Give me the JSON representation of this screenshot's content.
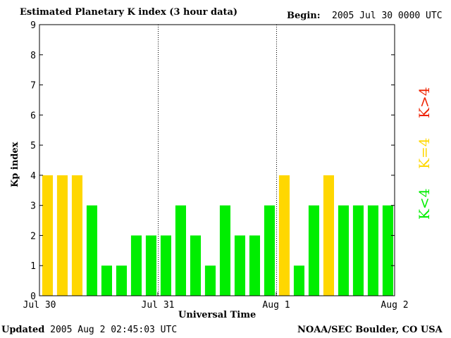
{
  "header": {
    "title": "Estimated Planetary K index (3 hour data)",
    "begin_label": "Begin:",
    "begin_value": "2005 Jul 30 0000 UTC"
  },
  "footer": {
    "updated_label": "Updated",
    "updated_value": "2005 Aug  2 02:45:03 UTC",
    "credit": "NOAA/SEC Boulder, CO USA"
  },
  "legend": {
    "low": "K<4",
    "mid": "K=4",
    "high": "K>4"
  },
  "colors": {
    "low": "#00ee00",
    "mid": "#ffd700",
    "high": "#ee2200"
  },
  "chart_data": {
    "type": "bar",
    "title": "Estimated Planetary K index (3 hour data)",
    "xlabel": "Universal Time",
    "ylabel": "Kp index",
    "ylim": [
      0,
      9
    ],
    "yticks": [
      "0",
      "1",
      "2",
      "3",
      "4",
      "5",
      "6",
      "7",
      "8",
      "9"
    ],
    "xticks": [
      "Jul 30",
      "Jul 31",
      "Aug 1",
      "Aug 2"
    ],
    "values": [
      4,
      4,
      4,
      3,
      1,
      1,
      2,
      2,
      2,
      3,
      2,
      1,
      3,
      2,
      2,
      3,
      4,
      1,
      3,
      4,
      3,
      3,
      3,
      3
    ]
  }
}
